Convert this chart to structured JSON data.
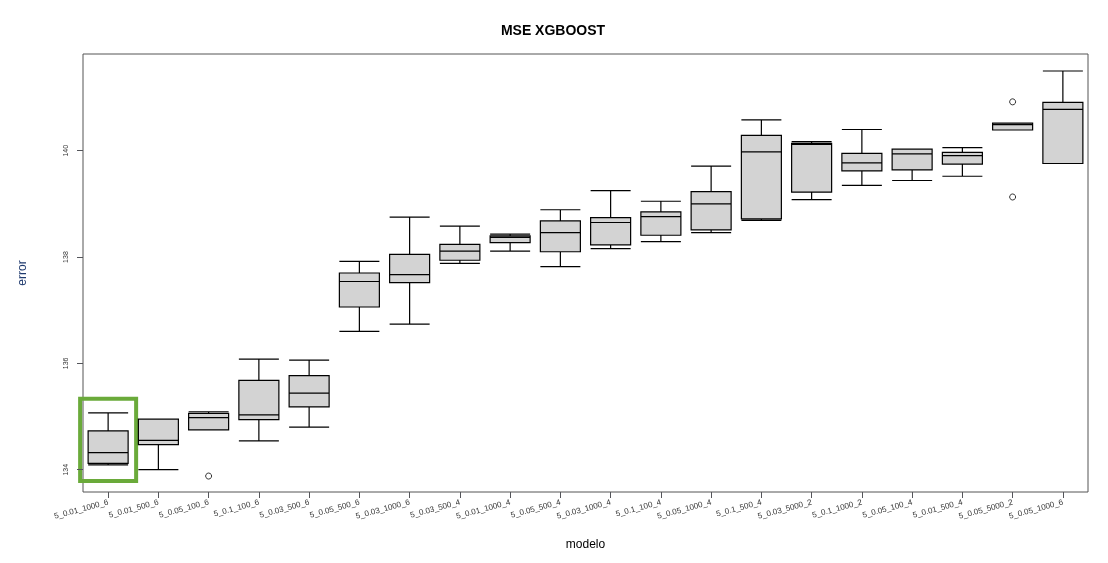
{
  "chart_data": {
    "type": "box",
    "title": "MSE XGBOOST",
    "xlabel": "modelo",
    "ylabel": "error",
    "categories": [
      "5_0.01_1000_6",
      "5_0.01_500_6",
      "5_0.05_100_6",
      "5_0.1_100_6",
      "5_0.03_500_6",
      "5_0.05_500_6",
      "5_0.03_1000_6",
      "5_0.03_500_4",
      "5_0.01_1000_4",
      "5_0.05_500_4",
      "5_0.03_1000_4",
      "5_0.1_100_4",
      "5_0.05_1000_4",
      "5_0.1_500_4",
      "5_0.03_5000_2",
      "5_0.1_1000_2",
      "5_0.05_100_4",
      "5_0.01_500_4",
      "5_0.05_5000_2",
      "5_0.05_1000_6"
    ],
    "color": "#d3d3d3",
    "boxes": [
      {
        "low": 134.09,
        "q1": 134.12,
        "median": 134.32,
        "q3": 134.73,
        "high": 135.07
      },
      {
        "low": 134.0,
        "q1": 134.47,
        "median": 134.55,
        "q3": 134.95,
        "high": 134.95
      },
      {
        "low": 134.75,
        "q1": 134.75,
        "median": 134.98,
        "q3": 135.06,
        "high": 135.09,
        "outliers": [
          133.88
        ]
      },
      {
        "low": 134.54,
        "q1": 134.94,
        "median": 135.03,
        "q3": 135.68,
        "high": 136.08
      },
      {
        "low": 134.8,
        "q1": 135.18,
        "median": 135.44,
        "q3": 135.77,
        "high": 136.06
      },
      {
        "low": 136.6,
        "q1": 137.06,
        "median": 137.54,
        "q3": 137.7,
        "high": 137.92
      },
      {
        "low": 136.74,
        "q1": 137.52,
        "median": 137.67,
        "q3": 138.05,
        "high": 138.75
      },
      {
        "low": 137.88,
        "q1": 137.94,
        "median": 138.11,
        "q3": 138.24,
        "high": 138.58
      },
      {
        "low": 138.11,
        "q1": 138.27,
        "median": 138.37,
        "q3": 138.4,
        "high": 138.43
      },
      {
        "low": 137.82,
        "q1": 138.1,
        "median": 138.46,
        "q3": 138.68,
        "high": 138.89
      },
      {
        "low": 138.16,
        "q1": 138.23,
        "median": 138.65,
        "q3": 138.74,
        "high": 139.25
      },
      {
        "low": 138.29,
        "q1": 138.41,
        "median": 138.76,
        "q3": 138.85,
        "high": 139.05
      },
      {
        "low": 138.46,
        "q1": 138.51,
        "median": 139.0,
        "q3": 139.23,
        "high": 139.71
      },
      {
        "low": 138.69,
        "q1": 138.72,
        "median": 139.98,
        "q3": 140.29,
        "high": 140.58
      },
      {
        "low": 139.08,
        "q1": 139.22,
        "median": 140.12,
        "q3": 140.14,
        "high": 140.17
      },
      {
        "low": 139.35,
        "q1": 139.62,
        "median": 139.77,
        "q3": 139.95,
        "high": 140.4
      },
      {
        "low": 139.44,
        "q1": 139.64,
        "median": 139.94,
        "q3": 140.03,
        "high": 140.03
      },
      {
        "low": 139.52,
        "q1": 139.75,
        "median": 139.91,
        "q3": 139.97,
        "high": 140.06
      },
      {
        "low": 140.39,
        "q1": 140.39,
        "median": 140.49,
        "q3": 140.52,
        "high": 140.52,
        "outliers": [
          140.92,
          139.13
        ]
      },
      {
        "low": 139.76,
        "q1": 139.76,
        "median": 140.78,
        "q3": 140.91,
        "high": 141.5
      }
    ],
    "ylim": [
      133.58,
      141.82
    ],
    "yticks": [
      134,
      136,
      138,
      140
    ],
    "grid": false
  }
}
